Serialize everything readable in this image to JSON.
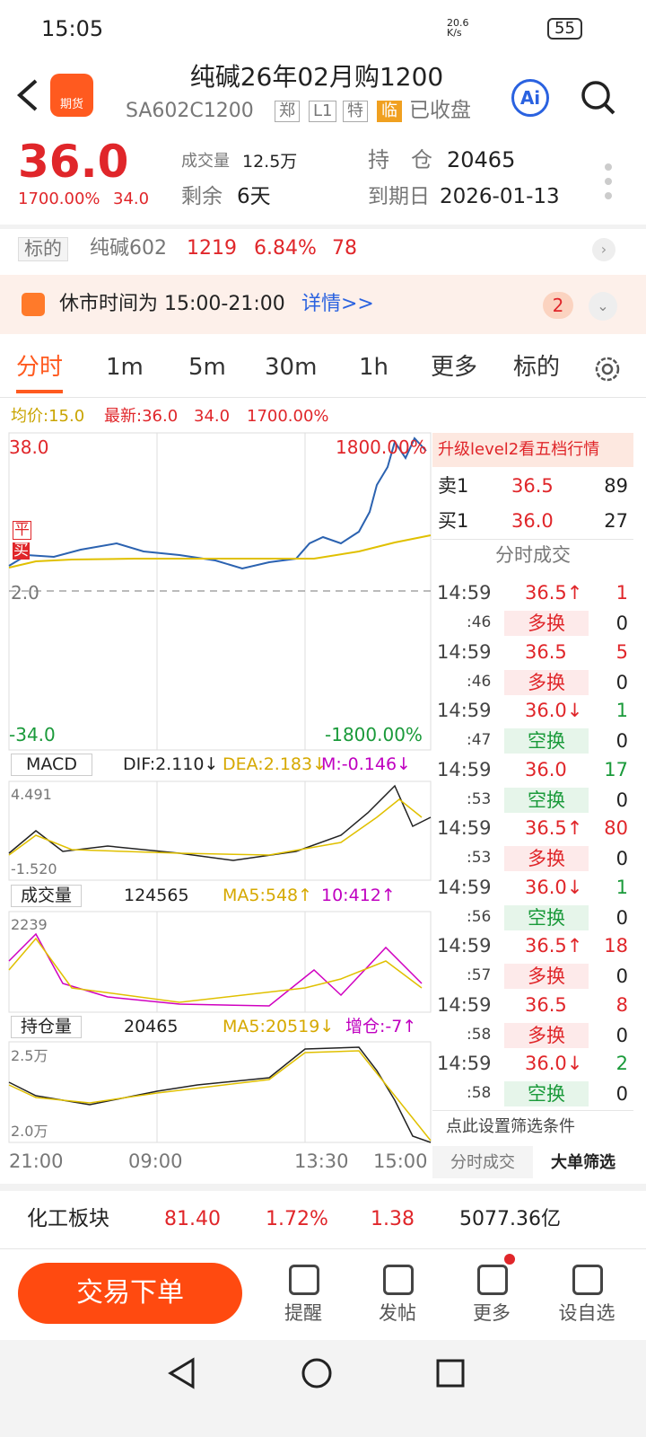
{
  "status": {
    "time": "15:05",
    "net": "20.6 K/s",
    "battery": "55"
  },
  "header": {
    "logo": "期货",
    "title": "纯碱26年02月购1200",
    "code": "SA602C1200",
    "tags": [
      "郑",
      "L1",
      "特",
      "临"
    ],
    "state": "已收盘",
    "ai": "Ai"
  },
  "quote": {
    "price": "36.0",
    "change_pct": "1700.00%",
    "change": "34.0",
    "volume_label": "成交量",
    "volume": "12.5万",
    "oi_label": "持　仓",
    "oi": "20465",
    "remain_label": "剩余",
    "remain": "6天",
    "expiry_label": "到期日",
    "expiry": "2026-01-13"
  },
  "underlying": {
    "label": "标的",
    "name": "纯碱602",
    "price": "1219",
    "pct": "6.84%",
    "chg": "78"
  },
  "notice": {
    "text": "休市时间为 15:00-21:00",
    "link": "详情>>",
    "badge": "2"
  },
  "tabs": [
    "分时",
    "1m",
    "5m",
    "30m",
    "1h",
    "更多",
    "标的"
  ],
  "info": {
    "avg": "均价:15.0",
    "last": "最新:36.0",
    "chg": "34.0",
    "pct": "1700.00%"
  },
  "price_chart": {
    "top": "38.0",
    "top_pct": "1800.00%",
    "mid": "2.0",
    "bottom": "-34.0",
    "bottom_pct": "-1800.00%",
    "flag1": "平",
    "flag2": "买"
  },
  "macd": {
    "name": "MACD",
    "dif": "DIF:2.110↓",
    "dea": "DEA:2.183↓",
    "m": "M:-0.146↓",
    "max": "4.491",
    "min": "-1.520"
  },
  "volume": {
    "name": "成交量",
    "value": "124565",
    "ma5": "MA5:548↑",
    "ma10": "10:412↑",
    "max": "2239"
  },
  "open_interest": {
    "name": "持仓量",
    "value": "20465",
    "ma5": "MA5:20519↓",
    "change": "增仓:-7↑",
    "max": "2.5万",
    "min": "2.0万"
  },
  "time_axis": [
    "21:00",
    "09:00",
    "13:30",
    "15:00"
  ],
  "book": {
    "upgrade": "升级level2看五档行情",
    "ask": [
      "卖1",
      "36.5",
      "89"
    ],
    "bid": [
      "买1",
      "36.0",
      "27"
    ],
    "title": "分时成交"
  },
  "trades": [
    {
      "time": "14:59",
      "sec": ":46",
      "price": "36.5↑",
      "vol": "1",
      "type": "多换",
      "oi": "0"
    },
    {
      "time": "14:59",
      "sec": ":46",
      "price": "36.5",
      "vol": "5",
      "type": "多换",
      "oi": "0"
    },
    {
      "time": "14:59",
      "sec": ":47",
      "price": "36.0↓",
      "vol": "1",
      "type": "空换",
      "oi": "0"
    },
    {
      "time": "14:59",
      "sec": ":53",
      "price": "36.0",
      "vol": "17",
      "type": "空换",
      "oi": "0"
    },
    {
      "time": "14:59",
      "sec": ":53",
      "price": "36.5↑",
      "vol": "80",
      "type": "多换",
      "oi": "0"
    },
    {
      "time": "14:59",
      "sec": ":56",
      "price": "36.0↓",
      "vol": "1",
      "type": "空换",
      "oi": "0"
    },
    {
      "time": "14:59",
      "sec": ":57",
      "price": "36.5↑",
      "vol": "18",
      "type": "多换",
      "oi": "0"
    },
    {
      "time": "14:59",
      "sec": ":58",
      "price": "36.5",
      "vol": "8",
      "type": "多换",
      "oi": "0"
    },
    {
      "time": "14:59",
      "sec": ":58",
      "price": "36.0↓",
      "vol": "2",
      "type": "空换",
      "oi": "0"
    }
  ],
  "filter": {
    "text": "点此设置筛选条件",
    "tabs": [
      "分时成交",
      "大单筛选"
    ]
  },
  "sector": {
    "name": "化工板块",
    "price": "81.40",
    "pct": "1.72%",
    "chg": "1.38",
    "amount": "5077.36亿"
  },
  "bottom": {
    "button": "交易下单",
    "items": [
      "提醒",
      "发帖",
      "更多",
      "设自选"
    ]
  }
}
